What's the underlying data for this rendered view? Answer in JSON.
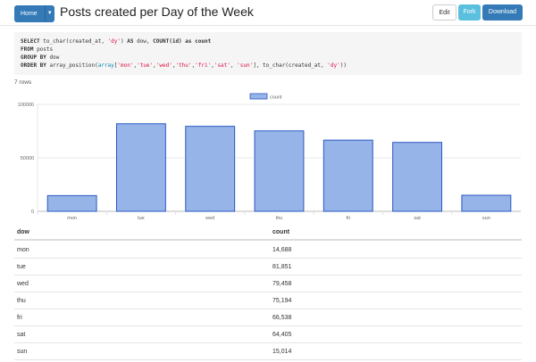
{
  "header": {
    "home_label": "Home",
    "title": "Posts created per Day of the Week",
    "edit_label": "Edit",
    "fork_label": "Fork",
    "download_label": "Download"
  },
  "sql": {
    "line1_kw1": "SELECT",
    "line1_a": " to_char(created_at, ",
    "line1_s": "'dy'",
    "line1_b": ") ",
    "line1_kw2": "AS",
    "line1_c": " dow, ",
    "line1_kw3": "COUNT(id) as count",
    "line2_kw": "FROM",
    "line2": " posts",
    "line3_kw": "GROUP BY",
    "line3": " dow",
    "line4_kw": "ORDER BY",
    "line4_a": " array_position(",
    "line4_fn": "array",
    "line4_b": "[",
    "line4_s1": "'mon'",
    "line4_s2": "'tue'",
    "line4_s3": "'wed'",
    "line4_s4": "'thu'",
    "line4_s5": "'fri'",
    "line4_s6": "'sat'",
    "line4_s7": "'sun'",
    "line4_c": "], to_char(created_at, ",
    "line4_s8": "'dy'",
    "line4_d": "))"
  },
  "row_count": "7 rows",
  "chart_data": {
    "type": "bar",
    "categories": [
      "mon",
      "tue",
      "wed",
      "thu",
      "fri",
      "sat",
      "sun"
    ],
    "series": [
      {
        "name": "count",
        "values": [
          14688,
          81851,
          79458,
          75194,
          66538,
          64405,
          15014
        ]
      }
    ],
    "ylim": [
      0,
      100000
    ],
    "yticks": [
      "0",
      "50000",
      "100000"
    ],
    "legend": "top-center",
    "grid": true,
    "bar_fill": "#97b4e8",
    "bar_stroke": "#2a57c4"
  },
  "table": {
    "headers": [
      "dow",
      "count"
    ],
    "rows": [
      [
        "mon",
        "14,688"
      ],
      [
        "tue",
        "81,851"
      ],
      [
        "wed",
        "79,458"
      ],
      [
        "thu",
        "75,194"
      ],
      [
        "fri",
        "66,538"
      ],
      [
        "sat",
        "64,405"
      ],
      [
        "sun",
        "15,014"
      ]
    ]
  }
}
